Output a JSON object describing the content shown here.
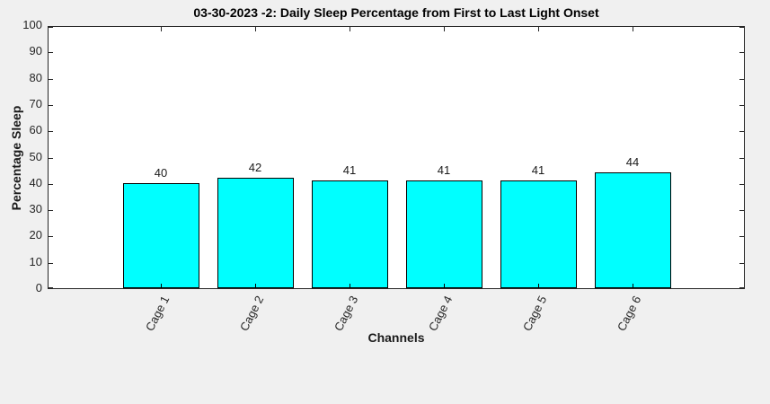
{
  "figure": {
    "background_color": "#F0F0F0"
  },
  "chart_data": {
    "type": "bar",
    "title": "03-30-2023 -2: Daily Sleep Percentage from First to Last Light Onset",
    "xlabel": "Channels",
    "ylabel": "Percentage Sleep",
    "categories": [
      "Cage 1",
      "Cage 2",
      "Cage 3",
      "Cage 4",
      "Cage 5",
      "Cage 6"
    ],
    "values": [
      40,
      42,
      41,
      41,
      41,
      44
    ],
    "bar_value_labels": [
      "40",
      "42",
      "41",
      "41",
      "41",
      "44"
    ],
    "ylim": [
      0,
      100
    ],
    "yticks": [
      0,
      10,
      20,
      30,
      40,
      50,
      60,
      70,
      80,
      90,
      100
    ],
    "grid": false,
    "legend": null,
    "bar_color": "#00FFFF",
    "bar_edge_color": "#000000",
    "plot_background": "#FFFFFF",
    "axis_color": "#262626"
  }
}
